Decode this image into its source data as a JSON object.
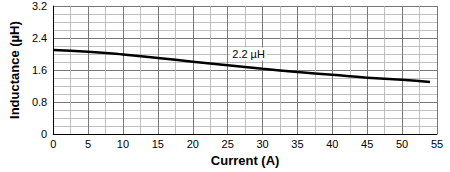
{
  "chart_data": {
    "type": "line",
    "x_label": "Current (A)",
    "y_label": "Inductance (µH)",
    "x": [
      0,
      5,
      10,
      15,
      20,
      25,
      30,
      35,
      40,
      45,
      50,
      54
    ],
    "values": [
      2.1,
      2.06,
      1.99,
      1.9,
      1.81,
      1.72,
      1.63,
      1.55,
      1.48,
      1.41,
      1.36,
      1.3
    ],
    "color": "#000000",
    "xlim": [
      0,
      55
    ],
    "xticks": [
      0,
      5,
      10,
      15,
      20,
      25,
      30,
      35,
      40,
      45,
      50,
      55
    ],
    "ylim": [
      0,
      3.2
    ],
    "yticks": [
      0,
      0.8,
      1.6,
      2.4,
      3.2
    ],
    "grid": true,
    "annotations": [
      {
        "text": "2.2 µH",
        "x": 28,
        "y": 2.0
      }
    ]
  }
}
